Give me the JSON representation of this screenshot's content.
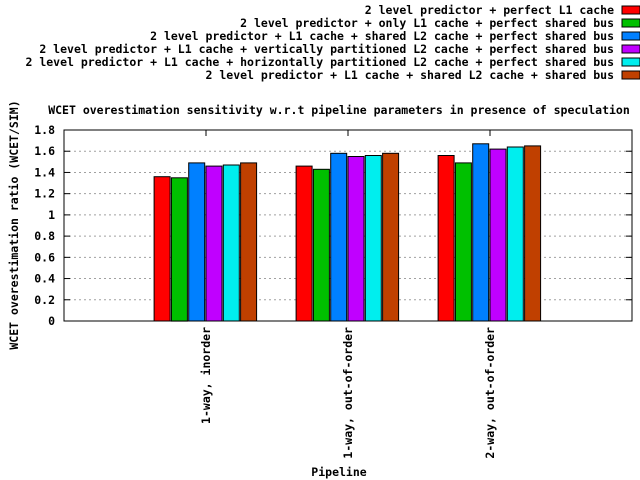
{
  "chart_data": {
    "type": "bar",
    "title": "WCET overestimation sensitivity w.r.t pipeline parameters in presence of speculation",
    "xlabel": "Pipeline",
    "ylabel": "WCET overestimation ratio (WCET/SIM)",
    "ylim": [
      0,
      1.8
    ],
    "yticks": [
      "0",
      "0.2",
      "0.4",
      "0.6",
      "0.8",
      "1",
      "1.2",
      "1.4",
      "1.6",
      "1.8"
    ],
    "grid": true,
    "legend_position": "top-right",
    "categories": [
      "1-way, inorder",
      "1-way, out-of-order",
      "2-way, out-of-order"
    ],
    "series": [
      {
        "name": "2 level predictor +  perfect L1 cache",
        "color": "#ff0000",
        "values": [
          1.36,
          1.46,
          1.56
        ]
      },
      {
        "name": "2 level predictor +  only L1 cache + perfect shared bus",
        "color": "#00c000",
        "values": [
          1.35,
          1.43,
          1.49
        ]
      },
      {
        "name": "2 level predictor + L1 cache + shared L2 cache + perfect shared bus",
        "color": "#0080ff",
        "values": [
          1.49,
          1.58,
          1.67
        ]
      },
      {
        "name": "2 level predictor + L1 cache +  vertically partitioned L2 cache + perfect shared bus",
        "color": "#c000ff",
        "values": [
          1.46,
          1.55,
          1.62
        ]
      },
      {
        "name": "2 level predictor + L1 cache + horizontally partitioned L2 cache + perfect shared bus",
        "color": "#00eeee",
        "values": [
          1.47,
          1.56,
          1.64
        ]
      },
      {
        "name": "2 level predictor + L1 cache + shared L2 cache + shared bus",
        "color": "#c04000",
        "values": [
          1.49,
          1.58,
          1.65
        ]
      }
    ]
  }
}
